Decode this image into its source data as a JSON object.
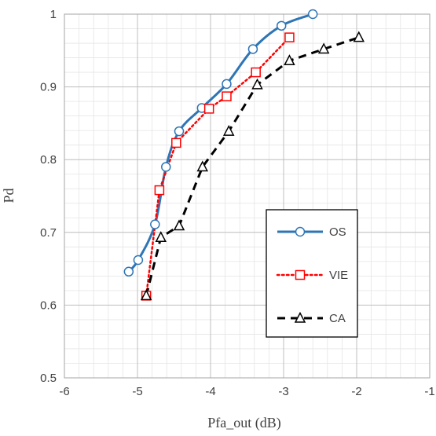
{
  "chart_data": {
    "type": "line",
    "title": "",
    "xlabel": "Pfa_out (dB)",
    "ylabel": "Pd",
    "xlim": [
      -6,
      -1
    ],
    "ylim": [
      0.5,
      1.0
    ],
    "x_ticks": [
      -6,
      -5,
      -4,
      -3,
      -2,
      -1
    ],
    "y_ticks": [
      0.5,
      0.6,
      0.7,
      0.8,
      0.9,
      1.0
    ],
    "x_tick_labels": [
      "-6",
      "-5",
      "-4",
      "-3",
      "-2",
      "-1"
    ],
    "y_tick_labels": [
      "0.5",
      "0.6",
      "0.7",
      "0.8",
      "0.9",
      "1"
    ],
    "grid": "major and minor",
    "legend_position": "lower-right",
    "series": [
      {
        "name": "OS",
        "color": "#2E75B6",
        "line_style": "solid",
        "marker": "circle",
        "x": [
          -5.12,
          -4.99,
          -4.76,
          -4.61,
          -4.43,
          -4.12,
          -3.78,
          -3.42,
          -3.03,
          -2.6
        ],
        "y": [
          0.646,
          0.662,
          0.711,
          0.79,
          0.839,
          0.871,
          0.904,
          0.952,
          0.984,
          1.0
        ]
      },
      {
        "name": "VIE",
        "color": "#FF0000",
        "line_style": "dotted",
        "marker": "square",
        "x": [
          -4.88,
          -4.7,
          -4.47,
          -4.02,
          -3.78,
          -3.38,
          -2.92
        ],
        "y": [
          0.613,
          0.758,
          0.823,
          0.87,
          0.887,
          0.92,
          0.968
        ]
      },
      {
        "name": "CA",
        "color": "#000000",
        "line_style": "dashed",
        "marker": "triangle",
        "x": [
          -4.88,
          -4.68,
          -4.43,
          -4.11,
          -3.75,
          -3.36,
          -2.92,
          -2.45,
          -1.97
        ],
        "y": [
          0.613,
          0.693,
          0.709,
          0.79,
          0.839,
          0.903,
          0.936,
          0.952,
          0.968
        ]
      }
    ]
  }
}
